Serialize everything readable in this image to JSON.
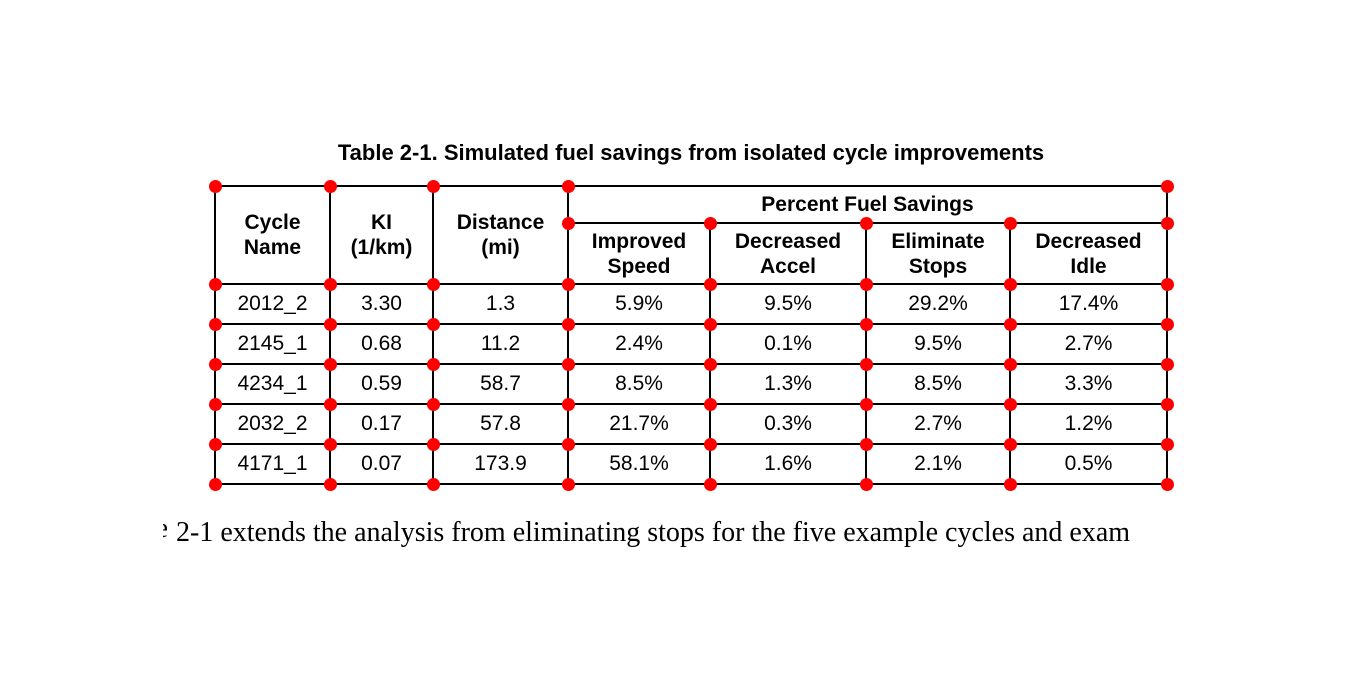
{
  "colors": {
    "background": "#ffffff",
    "ink": "#000000",
    "table_border": "#000000",
    "corner_marker": "#ff0000"
  },
  "title": {
    "text": "Table 2-1. Simulated fuel savings from isolated cycle improvements"
  },
  "table": {
    "header": {
      "cycle_name": {
        "l1": "Cycle",
        "l2": "Name"
      },
      "ki": {
        "l1": "KI",
        "l2": "(1/km)"
      },
      "distance": {
        "l1": "Distance",
        "l2": "(mi)"
      },
      "group": "Percent Fuel Savings",
      "improved_speed": {
        "l1": "Improved",
        "l2": "Speed"
      },
      "decreased_accel": {
        "l1": "Decreased",
        "l2": "Accel"
      },
      "eliminate_stops": {
        "l1": "Eliminate",
        "l2": "Stops"
      },
      "decreased_idle": {
        "l1": "Decreased",
        "l2": "Idle"
      }
    },
    "rows": [
      {
        "cycle": "2012_2",
        "ki": "3.30",
        "distance": "1.3",
        "improved_speed": "5.9%",
        "decreased_accel": "9.5%",
        "eliminate_stops": "29.2%",
        "decreased_idle": "17.4%"
      },
      {
        "cycle": "2145_1",
        "ki": "0.68",
        "distance": "11.2",
        "improved_speed": "2.4%",
        "decreased_accel": "0.1%",
        "eliminate_stops": "9.5%",
        "decreased_idle": "2.7%"
      },
      {
        "cycle": "4234_1",
        "ki": "0.59",
        "distance": "58.7",
        "improved_speed": "8.5%",
        "decreased_accel": "1.3%",
        "eliminate_stops": "8.5%",
        "decreased_idle": "3.3%"
      },
      {
        "cycle": "2032_2",
        "ki": "0.17",
        "distance": "57.8",
        "improved_speed": "21.7%",
        "decreased_accel": "0.3%",
        "eliminate_stops": "2.7%",
        "decreased_idle": "1.2%"
      },
      {
        "cycle": "4171_1",
        "ki": "0.07",
        "distance": "173.9",
        "improved_speed": "58.1%",
        "decreased_accel": "1.6%",
        "eliminate_stops": "2.1%",
        "decreased_idle": "0.5%"
      }
    ]
  },
  "paragraph": {
    "clipped_lead_glyph": "e",
    "text": "2-1 extends the analysis from eliminating stops for the five example cycles and exam"
  }
}
